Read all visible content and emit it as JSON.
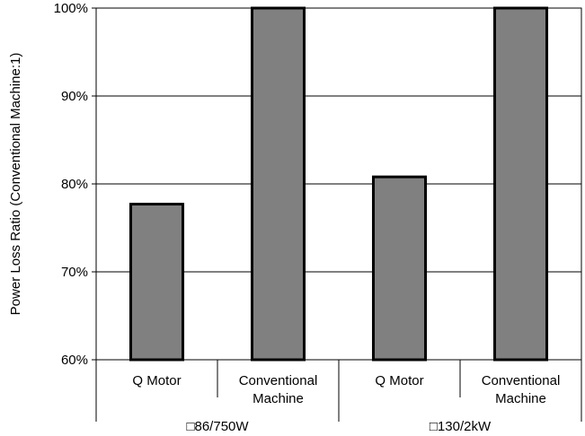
{
  "chart_data": {
    "type": "bar",
    "ylabel": "Power Loss Ratio (Conventional Machine:1)",
    "ylim": [
      60,
      100
    ],
    "yticks": [
      60,
      70,
      80,
      90,
      100
    ],
    "ytick_labels": [
      "60%",
      "70%",
      "80%",
      "90%",
      "100%"
    ],
    "grid": true,
    "groups": [
      {
        "label": "□86/750W",
        "bars": [
          {
            "label": "Q Motor",
            "value": 77.7
          },
          {
            "label": "Conventional Machine",
            "value": 100
          }
        ]
      },
      {
        "label": "□130/2kW",
        "bars": [
          {
            "label": "Q Motor",
            "value": 80.8
          },
          {
            "label": "Conventional Machine",
            "value": 100
          }
        ]
      }
    ],
    "bar_color": "#808080",
    "bar_edge_color": "#000000"
  }
}
